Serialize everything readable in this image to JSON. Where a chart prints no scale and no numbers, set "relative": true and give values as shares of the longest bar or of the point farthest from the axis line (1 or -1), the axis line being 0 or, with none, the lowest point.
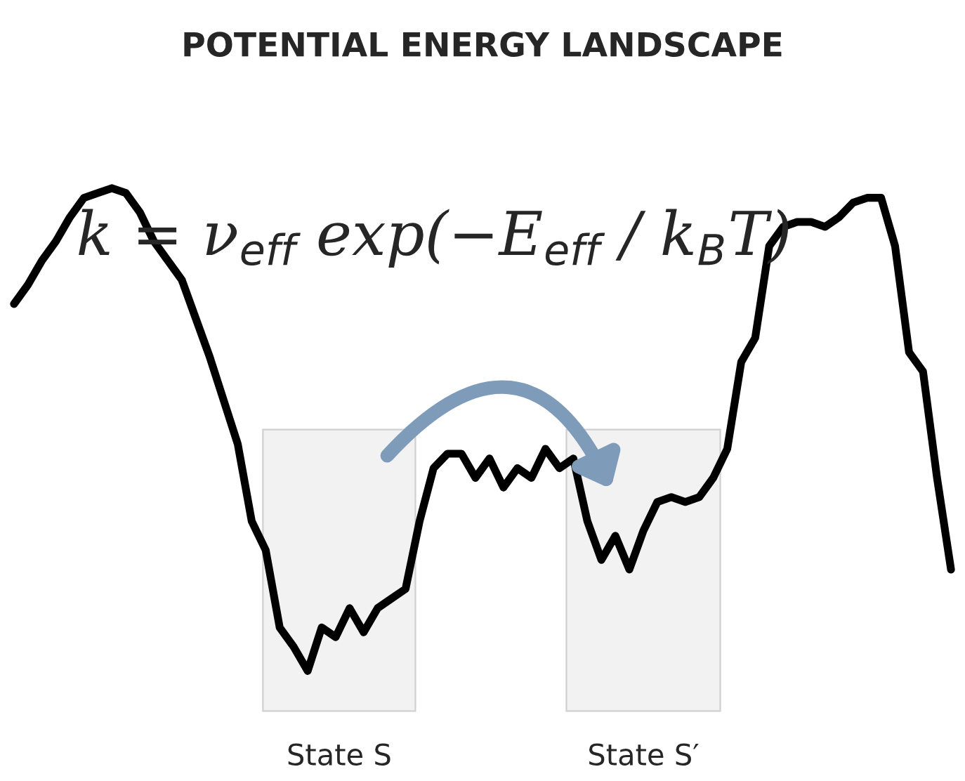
{
  "chart_data": {
    "type": "line",
    "title": "POTENTIAL ENERGY LANDSCAPE",
    "relative": true,
    "categories": [
      null,
      null,
      null,
      null,
      null,
      null,
      null,
      null,
      null,
      null,
      null,
      null,
      null,
      null,
      null,
      null,
      null,
      null,
      null,
      null,
      null,
      null,
      null,
      null,
      null,
      null,
      null,
      null,
      null,
      null,
      null,
      null,
      null,
      null,
      null,
      null,
      null,
      null,
      null,
      null,
      null,
      null,
      null,
      null,
      null,
      null,
      null,
      null,
      null,
      null,
      null,
      null,
      null,
      null,
      null,
      null,
      null,
      null,
      null,
      null,
      null,
      null,
      null,
      null,
      null,
      null,
      null,
      null
    ],
    "series": [
      {
        "color": "#000000",
        "values": [
          0.76,
          0.8,
          0.85,
          0.89,
          0.94,
          0.98,
          0.99,
          1,
          0.99,
          0.95,
          0.89,
          0.85,
          0.81,
          0.73,
          0.65,
          0.56,
          0.47,
          0.31,
          0.25,
          0.09,
          0.05,
          0,
          0.09,
          0.07,
          0.13,
          0.08,
          0.13,
          0.15,
          0.17,
          0.31,
          0.42,
          0.45,
          0.45,
          0.4,
          0.44,
          0.38,
          0.42,
          0.4,
          0.46,
          0.42,
          0.44,
          0.31,
          0.23,
          0.28,
          0.21,
          0.29,
          0.35,
          0.36,
          0.35,
          0.36,
          0.4,
          0.46,
          0.64,
          0.69,
          0.88,
          0.92,
          0.93,
          0.93,
          0.92,
          0.94,
          0.97,
          0.98,
          0.98,
          0.88,
          0.66,
          0.62,
          0.4,
          0.21
        ]
      }
    ],
    "annotations": [
      "k = ν$_{eff}$ exp(−E$_{eff}$ / k$_{B}$T)",
      "State S",
      "State S′"
    ],
    "line_style": "solid",
    "marker": "none",
    "legend": false
  }
}
